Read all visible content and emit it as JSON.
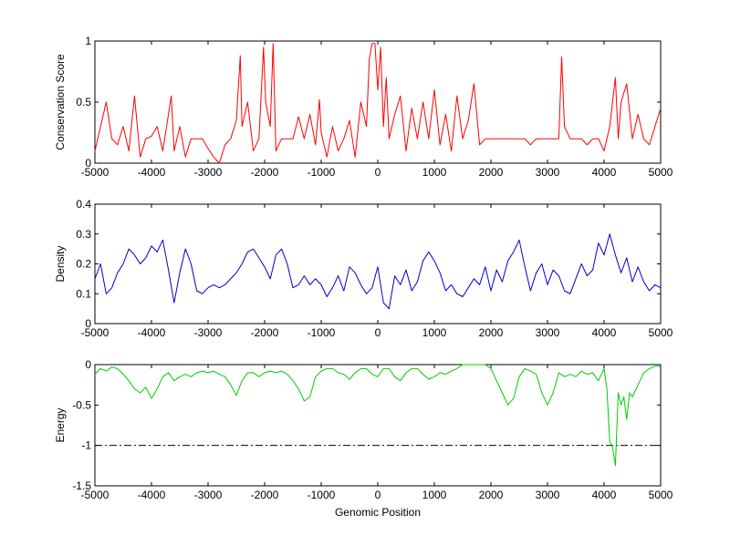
{
  "chart_data": [
    {
      "type": "line",
      "ylabel": "Conservation Score",
      "xlim": [
        -5000,
        5000
      ],
      "ylim": [
        0,
        1
      ],
      "xticks": [
        "-5000",
        "-4000",
        "-3000",
        "-2000",
        "-1000",
        "0",
        "1000",
        "2000",
        "3000",
        "4000",
        "5000"
      ],
      "yticks": [
        "0",
        "0.5",
        "1"
      ],
      "series": [
        {
          "color": "#ff0000",
          "x": [
            -5000,
            -4900,
            -4800,
            -4700,
            -4600,
            -4500,
            -4400,
            -4300,
            -4200,
            -4100,
            -4000,
            -3900,
            -3800,
            -3700,
            -3650,
            -3600,
            -3500,
            -3400,
            -3300,
            -3200,
            -3100,
            -3000,
            -2900,
            -2800,
            -2700,
            -2600,
            -2500,
            -2430,
            -2400,
            -2300,
            -2200,
            -2100,
            -2020,
            -1980,
            -1900,
            -1850,
            -1800,
            -1700,
            -1600,
            -1500,
            -1400,
            -1300,
            -1200,
            -1100,
            -1030,
            -1000,
            -900,
            -800,
            -700,
            -600,
            -500,
            -400,
            -300,
            -200,
            -150,
            -100,
            -50,
            0,
            50,
            100,
            150,
            200,
            300,
            400,
            500,
            600,
            700,
            800,
            900,
            1000,
            1100,
            1200,
            1300,
            1400,
            1500,
            1600,
            1700,
            1800,
            1900,
            2000,
            2100,
            2200,
            2300,
            2400,
            2500,
            2600,
            2700,
            2800,
            2900,
            3000,
            3100,
            3200,
            3250,
            3300,
            3400,
            3500,
            3600,
            3700,
            3800,
            3900,
            4000,
            4100,
            4200,
            4250,
            4300,
            4400,
            4500,
            4600,
            4700,
            4800,
            4900,
            5000
          ],
          "values": [
            0.1,
            0.3,
            0.5,
            0.2,
            0.15,
            0.3,
            0.1,
            0.55,
            0.05,
            0.2,
            0.22,
            0.3,
            0.1,
            0.4,
            0.55,
            0.1,
            0.3,
            0.05,
            0.2,
            0.2,
            0.2,
            0.12,
            0.05,
            0.0,
            0.15,
            0.2,
            0.35,
            0.88,
            0.3,
            0.5,
            0.1,
            0.2,
            0.95,
            0.5,
            0.3,
            0.98,
            0.1,
            0.2,
            0.2,
            0.2,
            0.38,
            0.2,
            0.4,
            0.15,
            0.52,
            0.25,
            0.05,
            0.3,
            0.1,
            0.2,
            0.35,
            0.05,
            0.5,
            0.3,
            0.85,
            0.98,
            0.98,
            0.6,
            0.95,
            0.3,
            0.7,
            0.2,
            0.4,
            0.55,
            0.1,
            0.45,
            0.2,
            0.5,
            0.2,
            0.6,
            0.15,
            0.4,
            0.1,
            0.55,
            0.2,
            0.35,
            0.65,
            0.15,
            0.2,
            0.2,
            0.2,
            0.2,
            0.2,
            0.2,
            0.2,
            0.2,
            0.15,
            0.2,
            0.2,
            0.2,
            0.2,
            0.2,
            0.87,
            0.3,
            0.2,
            0.2,
            0.2,
            0.15,
            0.2,
            0.2,
            0.1,
            0.3,
            0.7,
            0.2,
            0.5,
            0.65,
            0.2,
            0.4,
            0.2,
            0.15,
            0.3,
            0.45
          ]
        }
      ]
    },
    {
      "type": "line",
      "ylabel": "Density",
      "xlim": [
        -5000,
        5000
      ],
      "ylim": [
        0,
        0.4
      ],
      "xticks": [
        "-5000",
        "-4000",
        "-3000",
        "-2000",
        "-1000",
        "0",
        "1000",
        "2000",
        "3000",
        "4000",
        "5000"
      ],
      "yticks": [
        "0",
        "0.1",
        "0.2",
        "0.3",
        "0.4"
      ],
      "series": [
        {
          "color": "#0000cc",
          "x": [
            -5000,
            -4900,
            -4800,
            -4700,
            -4600,
            -4500,
            -4400,
            -4300,
            -4200,
            -4100,
            -4000,
            -3900,
            -3800,
            -3700,
            -3600,
            -3500,
            -3400,
            -3300,
            -3200,
            -3100,
            -3000,
            -2900,
            -2800,
            -2700,
            -2600,
            -2500,
            -2400,
            -2300,
            -2200,
            -2100,
            -2000,
            -1900,
            -1800,
            -1700,
            -1600,
            -1500,
            -1400,
            -1300,
            -1200,
            -1100,
            -1000,
            -900,
            -800,
            -700,
            -600,
            -500,
            -400,
            -300,
            -200,
            -100,
            0,
            100,
            200,
            300,
            400,
            500,
            600,
            700,
            800,
            900,
            1000,
            1100,
            1200,
            1300,
            1400,
            1500,
            1600,
            1700,
            1800,
            1900,
            2000,
            2100,
            2200,
            2300,
            2400,
            2500,
            2600,
            2700,
            2800,
            2900,
            3000,
            3100,
            3200,
            3300,
            3400,
            3500,
            3600,
            3700,
            3800,
            3900,
            4000,
            4100,
            4200,
            4300,
            4400,
            4500,
            4600,
            4700,
            4800,
            4900,
            5000
          ],
          "values": [
            0.15,
            0.2,
            0.1,
            0.12,
            0.17,
            0.2,
            0.25,
            0.23,
            0.2,
            0.22,
            0.26,
            0.24,
            0.28,
            0.18,
            0.07,
            0.17,
            0.25,
            0.2,
            0.11,
            0.1,
            0.12,
            0.13,
            0.12,
            0.13,
            0.15,
            0.17,
            0.2,
            0.24,
            0.25,
            0.22,
            0.19,
            0.15,
            0.23,
            0.25,
            0.2,
            0.12,
            0.13,
            0.16,
            0.13,
            0.15,
            0.13,
            0.09,
            0.12,
            0.16,
            0.11,
            0.19,
            0.17,
            0.13,
            0.1,
            0.12,
            0.19,
            0.07,
            0.05,
            0.16,
            0.13,
            0.18,
            0.11,
            0.14,
            0.21,
            0.24,
            0.21,
            0.17,
            0.11,
            0.13,
            0.1,
            0.09,
            0.12,
            0.15,
            0.13,
            0.19,
            0.11,
            0.18,
            0.14,
            0.21,
            0.24,
            0.28,
            0.19,
            0.11,
            0.17,
            0.2,
            0.13,
            0.18,
            0.16,
            0.11,
            0.1,
            0.15,
            0.2,
            0.16,
            0.18,
            0.27,
            0.23,
            0.3,
            0.23,
            0.17,
            0.22,
            0.14,
            0.19,
            0.14,
            0.11,
            0.13,
            0.12
          ]
        }
      ]
    },
    {
      "type": "line",
      "ylabel": "Energy",
      "xlabel": "Genomic Position",
      "xlim": [
        -5000,
        5000
      ],
      "ylim": [
        -1.5,
        0
      ],
      "xticks": [
        "-5000",
        "-4000",
        "-3000",
        "-2000",
        "-1000",
        "0",
        "1000",
        "2000",
        "3000",
        "4000",
        "5000"
      ],
      "yticks": [
        "-1.5",
        "-1",
        "-0.5",
        "0"
      ],
      "reference_line": {
        "y": -1,
        "style": "dash-dot",
        "color": "#000000"
      },
      "series": [
        {
          "color": "#00cc00",
          "x": [
            -5000,
            -4900,
            -4800,
            -4700,
            -4600,
            -4500,
            -4400,
            -4300,
            -4200,
            -4100,
            -4000,
            -3900,
            -3800,
            -3700,
            -3600,
            -3500,
            -3400,
            -3300,
            -3200,
            -3100,
            -3000,
            -2900,
            -2800,
            -2700,
            -2600,
            -2500,
            -2400,
            -2300,
            -2200,
            -2100,
            -2000,
            -1900,
            -1800,
            -1700,
            -1600,
            -1500,
            -1400,
            -1300,
            -1200,
            -1100,
            -1000,
            -900,
            -800,
            -700,
            -600,
            -500,
            -400,
            -300,
            -200,
            -100,
            0,
            100,
            200,
            300,
            400,
            500,
            600,
            700,
            800,
            900,
            1000,
            1100,
            1200,
            1300,
            1400,
            1500,
            1600,
            1700,
            1800,
            1900,
            2000,
            2100,
            2200,
            2300,
            2400,
            2500,
            2600,
            2700,
            2800,
            2900,
            3000,
            3100,
            3200,
            3300,
            3400,
            3500,
            3600,
            3700,
            3800,
            3900,
            4000,
            4050,
            4100,
            4150,
            4200,
            4250,
            4300,
            4350,
            4400,
            4450,
            4500,
            4600,
            4700,
            4800,
            4900,
            5000
          ],
          "values": [
            -0.12,
            -0.05,
            -0.08,
            -0.03,
            -0.05,
            -0.12,
            -0.2,
            -0.3,
            -0.35,
            -0.28,
            -0.42,
            -0.3,
            -0.15,
            -0.1,
            -0.2,
            -0.15,
            -0.12,
            -0.15,
            -0.1,
            -0.08,
            -0.1,
            -0.08,
            -0.12,
            -0.15,
            -0.25,
            -0.38,
            -0.2,
            -0.1,
            -0.1,
            -0.15,
            -0.1,
            -0.08,
            -0.1,
            -0.08,
            -0.12,
            -0.2,
            -0.3,
            -0.45,
            -0.4,
            -0.15,
            -0.08,
            -0.05,
            -0.05,
            -0.1,
            -0.12,
            -0.18,
            -0.1,
            -0.05,
            -0.05,
            -0.12,
            -0.15,
            -0.05,
            -0.05,
            -0.15,
            -0.2,
            -0.1,
            -0.05,
            -0.05,
            -0.12,
            -0.18,
            -0.15,
            -0.1,
            -0.12,
            -0.08,
            -0.05,
            0,
            0,
            0,
            0,
            0,
            -0.05,
            -0.2,
            -0.35,
            -0.5,
            -0.42,
            -0.15,
            -0.05,
            -0.08,
            -0.12,
            -0.35,
            -0.5,
            -0.35,
            -0.1,
            -0.15,
            -0.12,
            -0.15,
            -0.08,
            -0.12,
            -0.1,
            -0.2,
            -0.05,
            -0.3,
            -0.95,
            -1.02,
            -1.25,
            -0.35,
            -0.5,
            -0.4,
            -0.68,
            -0.35,
            -0.4,
            -0.25,
            -0.1,
            -0.05,
            -0.02,
            -0.02
          ]
        }
      ]
    }
  ]
}
